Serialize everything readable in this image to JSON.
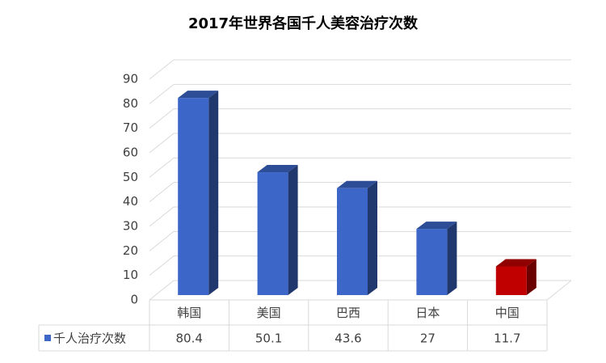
{
  "chart_data": {
    "type": "bar3d",
    "title": "2017年世界各国千人美容治疗次数",
    "categories": [
      "韩国",
      "美国",
      "巴西",
      "日本",
      "中国"
    ],
    "series": [
      {
        "name": "千人治疗次数",
        "color": "#3c66c8",
        "colors": [
          "#3c66c8",
          "#3c66c8",
          "#3c66c8",
          "#3c66c8",
          "#c00000"
        ],
        "values": [
          80.4,
          50.1,
          43.6,
          27,
          11.7
        ]
      }
    ],
    "ylim": [
      0,
      90
    ],
    "yticks": [
      0,
      10,
      20,
      30,
      40,
      50,
      60,
      70,
      80,
      90
    ],
    "grid": true,
    "data_table": true
  }
}
